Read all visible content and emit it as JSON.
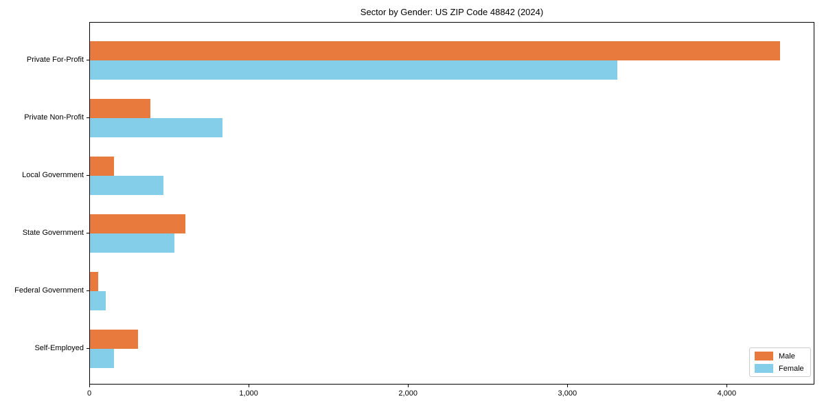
{
  "chart_data": {
    "type": "bar",
    "orientation": "horizontal",
    "title": "Sector by Gender: US ZIP Code 48842 (2024)",
    "categories": [
      "Private For-Profit",
      "Private Non-Profit",
      "Local Government",
      "State Government",
      "Federal Government",
      "Self-Employed"
    ],
    "series": [
      {
        "name": "Male",
        "color": "#E97A3D",
        "values": [
          4330,
          380,
          150,
          600,
          50,
          300
        ]
      },
      {
        "name": "Female",
        "color": "#85CEE9",
        "values": [
          3310,
          830,
          460,
          530,
          100,
          150
        ]
      }
    ],
    "xlabel": "",
    "ylabel": "",
    "xlim": [
      0,
      4550
    ],
    "xticks": [
      {
        "value": 0,
        "label": "0"
      },
      {
        "value": 1000,
        "label": "1,000"
      },
      {
        "value": 2000,
        "label": "2,000"
      },
      {
        "value": 3000,
        "label": "3,000"
      },
      {
        "value": 4000,
        "label": "4,000"
      }
    ],
    "grid": false,
    "legend_position": "lower right",
    "axis_color": "#000000",
    "background_color": "#ffffff",
    "legend_border_color": "#cccccc"
  }
}
